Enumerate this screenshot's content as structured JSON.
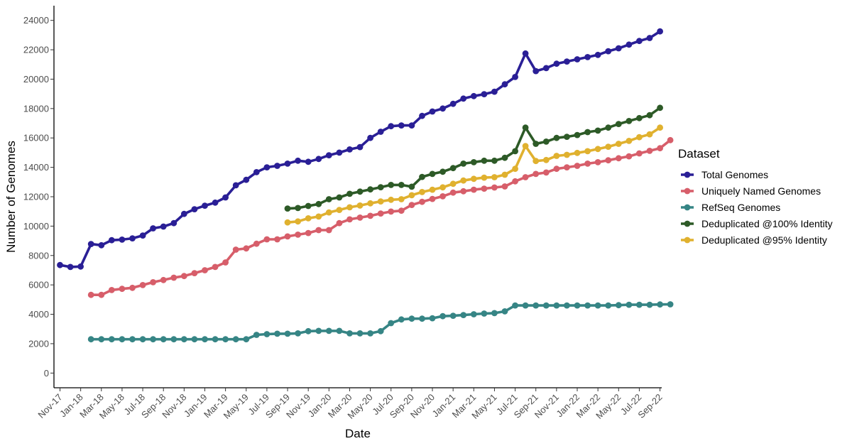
{
  "chart_data": {
    "type": "line",
    "title": "",
    "xlabel": "Date",
    "ylabel": "Number of Genomes",
    "ylim": [
      -1000,
      25000
    ],
    "y_ticks": [
      0,
      2000,
      4000,
      6000,
      8000,
      10000,
      12000,
      14000,
      16000,
      18000,
      20000,
      22000,
      24000
    ],
    "x_tick_labels": [
      "Nov-17",
      "Jan-18",
      "Mar-18",
      "May-18",
      "Jul-18",
      "Sep-18",
      "Nov-18",
      "Jan-19",
      "Mar-19",
      "May-19",
      "Jul-19",
      "Sep-19",
      "Nov-19",
      "Jan-20",
      "Mar-20",
      "May-20",
      "Jul-20",
      "Sep-20",
      "Nov-20",
      "Jan-21",
      "Mar-21",
      "May-21",
      "Jul-21",
      "Sep-21",
      "Nov-21",
      "Jan-22",
      "Mar-22",
      "May-22",
      "Jul-22",
      "Sep-22"
    ],
    "grid": false,
    "legend_title": "Dataset",
    "legend_position": "right",
    "series": [
      {
        "name": "Total Genomes",
        "color": "#2a1f96",
        "start": "Nov-17",
        "values": [
          7350,
          7220,
          7250,
          8780,
          8700,
          9040,
          9080,
          9170,
          9360,
          9850,
          9970,
          10200,
          10830,
          11150,
          11390,
          11600,
          11950,
          12780,
          13150,
          13670,
          14000,
          14100,
          14250,
          14450,
          14380,
          14570,
          14820,
          15000,
          15220,
          15380,
          16000,
          16420,
          16800,
          16850,
          16850,
          17500,
          17800,
          18000,
          18320,
          18680,
          18850,
          18980,
          19150,
          19650,
          20150,
          21750,
          20550,
          20750,
          21050,
          21200,
          21350,
          21500,
          21650,
          21900,
          22100,
          22350,
          22600,
          22800,
          23250
        ]
      },
      {
        "name": "Uniquely Named Genomes",
        "color": "#d75e6a",
        "start": "Feb-18",
        "values": [
          5320,
          5320,
          5650,
          5730,
          5800,
          5990,
          6180,
          6330,
          6490,
          6600,
          6800,
          7000,
          7220,
          7530,
          8400,
          8480,
          8800,
          9100,
          9100,
          9300,
          9420,
          9530,
          9730,
          9730,
          10200,
          10460,
          10580,
          10700,
          10860,
          10990,
          11050,
          11440,
          11650,
          11850,
          12030,
          12280,
          12370,
          12480,
          12550,
          12630,
          12700,
          13050,
          13330,
          13550,
          13650,
          13900,
          14000,
          14100,
          14250,
          14350,
          14480,
          14620,
          14750,
          14950,
          15120,
          15300,
          15850
        ]
      },
      {
        "name": "RefSeq Genomes",
        "color": "#368585",
        "start": "Feb-18",
        "values": [
          2300,
          2300,
          2300,
          2300,
          2300,
          2300,
          2300,
          2300,
          2300,
          2300,
          2300,
          2300,
          2300,
          2300,
          2300,
          2300,
          2600,
          2650,
          2680,
          2680,
          2700,
          2850,
          2870,
          2870,
          2870,
          2700,
          2700,
          2700,
          2850,
          3400,
          3650,
          3700,
          3700,
          3730,
          3870,
          3900,
          3950,
          4000,
          4050,
          4080,
          4200,
          4600,
          4600,
          4600,
          4600,
          4600,
          4600,
          4600,
          4600,
          4600,
          4600,
          4620,
          4650,
          4650,
          4650,
          4670,
          4680
        ]
      },
      {
        "name": "Deduplicated @100% Identity",
        "color": "#2d5a27",
        "start": "Sep-19",
        "values": [
          11200,
          11230,
          11370,
          11500,
          11830,
          11950,
          12200,
          12350,
          12500,
          12650,
          12800,
          12800,
          12680,
          13350,
          13550,
          13700,
          13950,
          14250,
          14350,
          14450,
          14450,
          14650,
          15100,
          16700,
          15600,
          15750,
          16000,
          16080,
          16200,
          16400,
          16500,
          16700,
          16950,
          17150,
          17350,
          17550,
          18050
        ]
      },
      {
        "name": "Deduplicated @95% Identity",
        "color": "#e0b12f",
        "start": "Sep-19",
        "values": [
          10250,
          10320,
          10530,
          10650,
          10930,
          11100,
          11280,
          11400,
          11550,
          11680,
          11790,
          11830,
          12100,
          12320,
          12480,
          12640,
          12880,
          13100,
          13220,
          13300,
          13330,
          13500,
          13900,
          15450,
          14430,
          14500,
          14780,
          14850,
          14980,
          15100,
          15250,
          15400,
          15600,
          15800,
          16050,
          16250,
          16700
        ]
      }
    ]
  }
}
